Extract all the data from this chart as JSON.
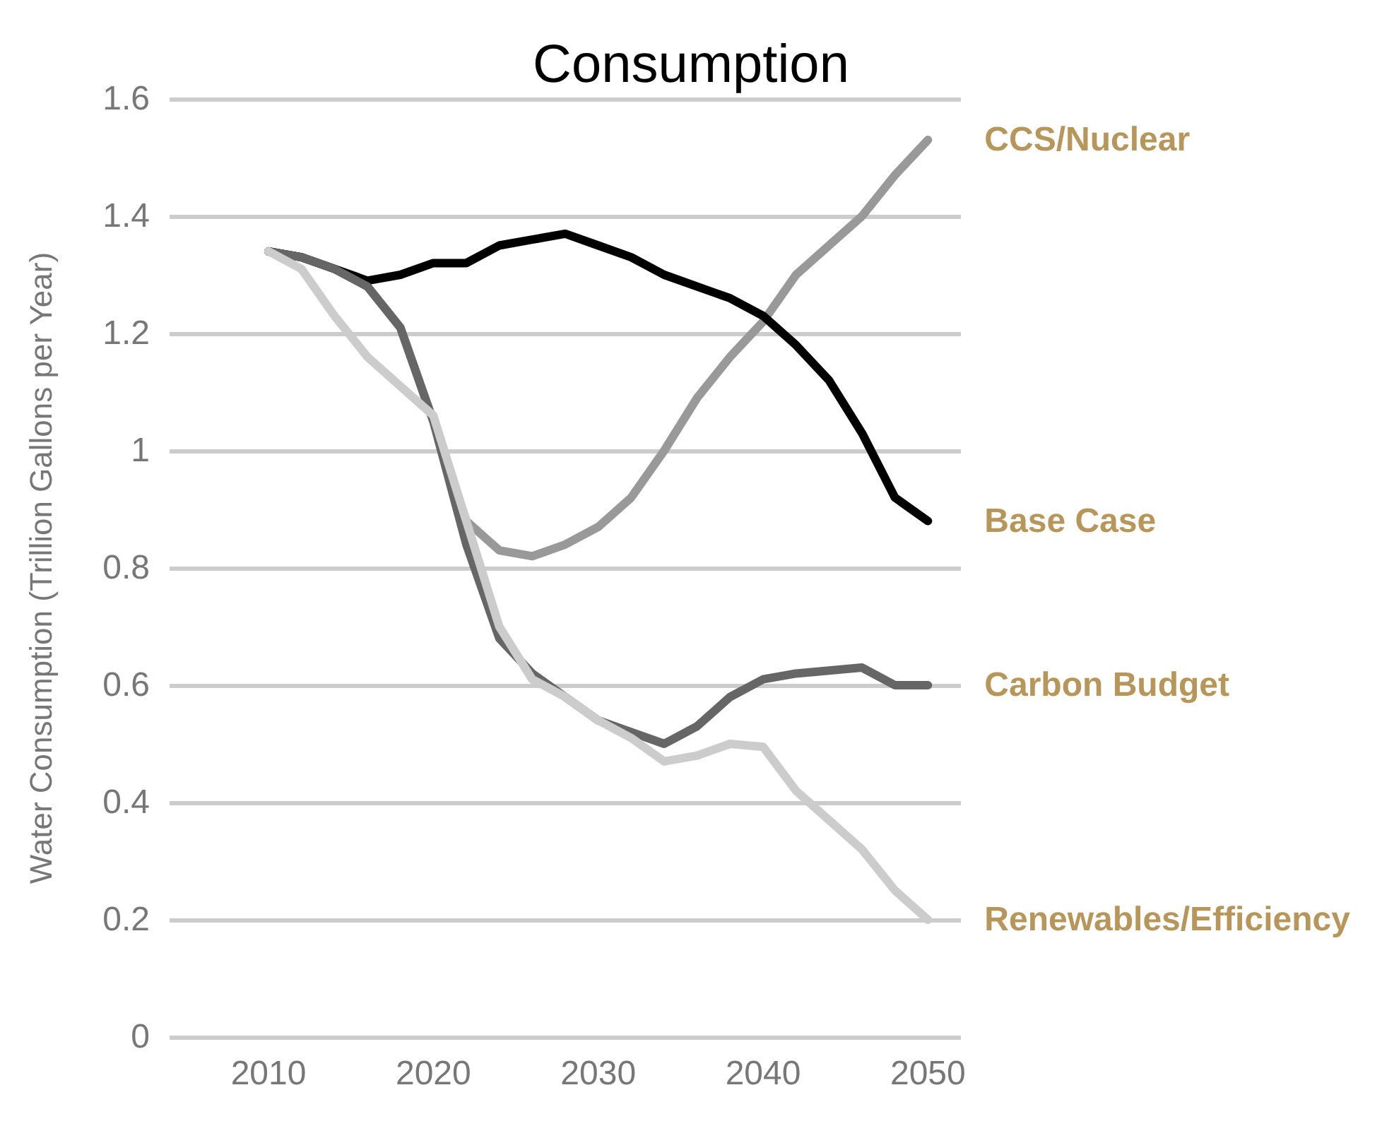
{
  "chart_data": {
    "type": "line",
    "title": "Consumption",
    "ylabel": "Water Consumption (Trillion Gallons per Year)",
    "x": [
      2010,
      2012,
      2014,
      2016,
      2018,
      2020,
      2022,
      2024,
      2026,
      2028,
      2030,
      2032,
      2034,
      2036,
      2038,
      2040,
      2042,
      2044,
      2046,
      2048,
      2050
    ],
    "series": [
      {
        "name": "CCS/Nuclear",
        "color": "#999999",
        "values": [
          1.34,
          1.33,
          1.31,
          1.28,
          1.21,
          1.05,
          0.88,
          0.83,
          0.82,
          0.84,
          0.87,
          0.92,
          1.0,
          1.09,
          1.16,
          1.22,
          1.3,
          1.35,
          1.4,
          1.47,
          1.53
        ]
      },
      {
        "name": "Base Case",
        "color": "#000000",
        "values": [
          1.34,
          1.33,
          1.31,
          1.29,
          1.3,
          1.32,
          1.32,
          1.35,
          1.36,
          1.37,
          1.35,
          1.33,
          1.3,
          1.28,
          1.26,
          1.23,
          1.18,
          1.12,
          1.03,
          0.92,
          0.88
        ]
      },
      {
        "name": "Carbon Budget",
        "color": "#666666",
        "values": [
          1.34,
          1.33,
          1.31,
          1.28,
          1.21,
          1.05,
          0.84,
          0.68,
          0.62,
          0.58,
          0.54,
          0.52,
          0.5,
          0.53,
          0.58,
          0.61,
          0.62,
          0.625,
          0.63,
          0.6,
          0.6
        ]
      },
      {
        "name": "Renewables/Efficiency",
        "color": "#cccccc",
        "values": [
          1.34,
          1.31,
          1.23,
          1.16,
          1.11,
          1.06,
          0.88,
          0.7,
          0.61,
          0.58,
          0.54,
          0.51,
          0.47,
          0.48,
          0.5,
          0.495,
          0.42,
          0.37,
          0.32,
          0.25,
          0.2
        ]
      }
    ],
    "xlim": [
      2004,
      2052
    ],
    "xticks": [
      2010,
      2020,
      2030,
      2040,
      2050
    ],
    "ylim": [
      0,
      1.6
    ],
    "yticks": [
      0,
      0.2,
      0.4,
      0.6,
      0.8,
      1,
      1.2,
      1.4,
      1.6
    ],
    "grid": "y",
    "legend": false,
    "marker": "none",
    "line_style": "solid"
  }
}
